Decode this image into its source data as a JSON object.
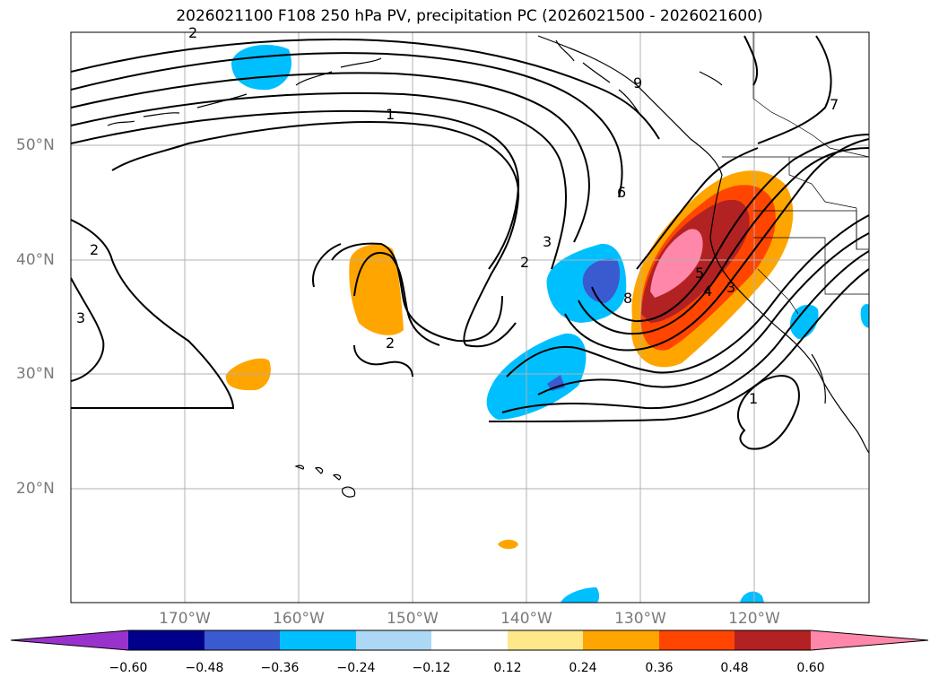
{
  "title": "2026021100 F108 250 hPa PV, precipitation PC (2026021500 - 2026021600)",
  "lat_labels": [
    "50°N",
    "40°N",
    "30°N",
    "20°N"
  ],
  "lon_labels": [
    "170°W",
    "160°W",
    "150°W",
    "140°W",
    "130°W",
    "120°W"
  ],
  "contour_labels": [
    "1",
    "2",
    "3",
    "6",
    "7",
    "8",
    "9",
    "2",
    "3",
    "2",
    "1",
    "2",
    "3",
    "4",
    "5"
  ],
  "colorbar": {
    "ticks": [
      "−0.60",
      "−0.48",
      "−0.36",
      "−0.24",
      "−0.12",
      "0.12",
      "0.24",
      "0.36",
      "0.48",
      "0.60"
    ],
    "colors": [
      "#9932cc",
      "#00008b",
      "#3a5bd0",
      "#00bfff",
      "#add8f5",
      "#ffffff",
      "#ffe88a",
      "#ffa500",
      "#ff4500",
      "#b22222",
      "#ff88aa"
    ]
  }
}
